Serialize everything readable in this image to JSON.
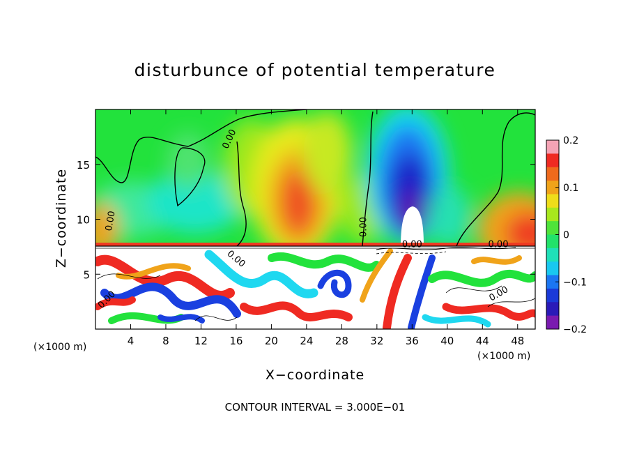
{
  "chart_data": {
    "type": "heatmap",
    "title": "disturbunce of potential temperature",
    "xlabel": "X−coordinate",
    "ylabel": "Z−coordinate",
    "x_unit": "(×1000 m)",
    "y_unit": "(×1000 m)",
    "xlim": [
      0,
      50
    ],
    "ylim": [
      0,
      20
    ],
    "x_ticks": [
      4,
      8,
      12,
      16,
      20,
      24,
      28,
      32,
      36,
      40,
      44,
      48
    ],
    "y_ticks": [
      5,
      10,
      15
    ],
    "colorbar": {
      "range": [
        -0.2,
        0.2
      ],
      "ticks": [
        0.2,
        0.1,
        0,
        -0.1,
        -0.2
      ],
      "tick_labels": [
        "0.2",
        "0.1",
        "0",
        "−0.1",
        "−0.2"
      ]
    },
    "contour_label": "0.00",
    "contour_interval_text": "CONTOUR INTERVAL = 3.000E−01",
    "features": [
      {
        "x": 24,
        "z": 11.5,
        "value": 0.13
      },
      {
        "x": 35.5,
        "z": 11.5,
        "value": -0.2
      },
      {
        "x": 49,
        "z": 10,
        "value": 0.13
      },
      {
        "x": 6,
        "z": 11,
        "value": -0.05
      },
      {
        "x": 10,
        "z": 15,
        "value": -0.03
      }
    ]
  }
}
